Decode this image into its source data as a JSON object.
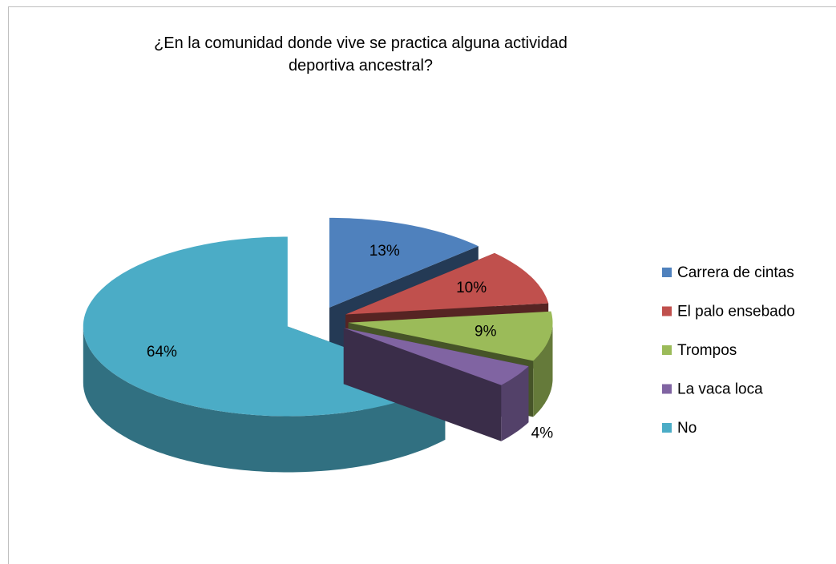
{
  "chart_data": {
    "type": "pie3d",
    "title": "¿En la comunidad donde vive se practica alguna actividad deportiva ancestral?",
    "categories": [
      "Carrera de cintas",
      "El palo ensebado",
      "Trompos",
      "La vaca loca",
      "No"
    ],
    "values": [
      13,
      10,
      9,
      4,
      64
    ],
    "value_labels": [
      "13%",
      "10%",
      "9%",
      "4%",
      "64%"
    ],
    "colors": [
      "#4f81bd",
      "#c0504d",
      "#9bbb59",
      "#8064a2",
      "#4bacc6"
    ],
    "legend": "right"
  }
}
